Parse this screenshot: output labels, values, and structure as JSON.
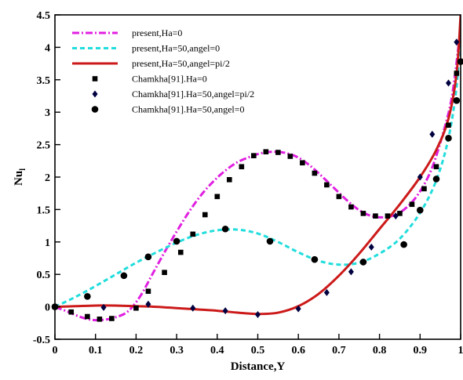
{
  "chart_data": {
    "type": "line",
    "title": "",
    "xlabel": "Distance,Y",
    "ylabel": "Nu",
    "ylabel_sub": "l",
    "xlim": [
      0,
      1
    ],
    "ylim": [
      -0.5,
      4.5
    ],
    "x_ticks": [
      0,
      0.1,
      0.2,
      0.3,
      0.4,
      0.5,
      0.6,
      0.7,
      0.8,
      0.9,
      1
    ],
    "x_tick_labels": [
      "0",
      "0.1",
      "0.2",
      "0.3",
      "0.4",
      "0.5",
      "0.6",
      "0.7",
      "0.8",
      "0.9",
      "1"
    ],
    "y_ticks": [
      -0.5,
      0,
      0.5,
      1,
      1.5,
      2,
      2.5,
      3,
      3.5,
      4,
      4.5
    ],
    "y_tick_labels": [
      "-0.5",
      "0",
      "0.5",
      "1",
      "1.5",
      "2",
      "2.5",
      "3",
      "3.5",
      "4",
      "4.5"
    ],
    "legend_position": "top-left",
    "grid": false,
    "series": [
      {
        "name": "present,Ha=0",
        "kind": "line",
        "color": "#e020e0",
        "style": "dashdot",
        "x": [
          0,
          0.03,
          0.06,
          0.09,
          0.12,
          0.15,
          0.18,
          0.21,
          0.24,
          0.27,
          0.3,
          0.33,
          0.36,
          0.39,
          0.42,
          0.45,
          0.48,
          0.51,
          0.54,
          0.57,
          0.6,
          0.63,
          0.66,
          0.69,
          0.72,
          0.75,
          0.78,
          0.81,
          0.84,
          0.87,
          0.9,
          0.93,
          0.96,
          0.98,
          1.0
        ],
        "y": [
          0,
          -0.07,
          -0.15,
          -0.2,
          -0.2,
          -0.16,
          -0.07,
          0.16,
          0.5,
          0.84,
          1.16,
          1.46,
          1.72,
          1.93,
          2.1,
          2.23,
          2.31,
          2.37,
          2.39,
          2.37,
          2.3,
          2.17,
          2.0,
          1.82,
          1.64,
          1.49,
          1.4,
          1.38,
          1.42,
          1.55,
          1.78,
          2.15,
          2.75,
          3.3,
          4.3
        ]
      },
      {
        "name": "present,Ha=50,angel=0",
        "kind": "line",
        "color": "#22dddd",
        "style": "dashed",
        "x": [
          0,
          0.05,
          0.1,
          0.15,
          0.2,
          0.25,
          0.3,
          0.35,
          0.4,
          0.45,
          0.5,
          0.55,
          0.6,
          0.65,
          0.7,
          0.75,
          0.8,
          0.85,
          0.9,
          0.94,
          0.97,
          0.99,
          1.0
        ],
        "y": [
          0,
          0.15,
          0.32,
          0.5,
          0.68,
          0.84,
          0.99,
          1.11,
          1.18,
          1.19,
          1.13,
          1.0,
          0.84,
          0.71,
          0.65,
          0.68,
          0.82,
          1.05,
          1.45,
          1.95,
          2.6,
          3.4,
          4.3
        ]
      },
      {
        "name": "present,Ha=50,angel=pi/2",
        "kind": "line",
        "color": "#cc1a1a",
        "style": "solid",
        "x": [
          0,
          0.05,
          0.1,
          0.15,
          0.2,
          0.25,
          0.3,
          0.35,
          0.4,
          0.45,
          0.5,
          0.55,
          0.6,
          0.65,
          0.7,
          0.75,
          0.8,
          0.85,
          0.9,
          0.94,
          0.97,
          0.99,
          1.0
        ],
        "y": [
          0,
          0.01,
          0.02,
          0.02,
          0.01,
          0.0,
          -0.02,
          -0.04,
          -0.06,
          -0.09,
          -0.11,
          -0.09,
          0.01,
          0.2,
          0.48,
          0.82,
          1.2,
          1.58,
          2.0,
          2.42,
          2.9,
          3.6,
          4.5
        ]
      },
      {
        "name": "Chamkha[91].Ha=0",
        "kind": "scatter",
        "marker": "square",
        "color": "#000000",
        "x": [
          0.0,
          0.04,
          0.08,
          0.11,
          0.14,
          0.2,
          0.23,
          0.27,
          0.31,
          0.34,
          0.37,
          0.4,
          0.43,
          0.46,
          0.49,
          0.52,
          0.55,
          0.58,
          0.61,
          0.64,
          0.67,
          0.7,
          0.73,
          0.76,
          0.79,
          0.82,
          0.85,
          0.88,
          0.91,
          0.94,
          0.97,
          0.99
        ],
        "y": [
          0.0,
          -0.08,
          -0.15,
          -0.19,
          -0.18,
          -0.02,
          0.24,
          0.53,
          0.84,
          1.12,
          1.42,
          1.7,
          1.96,
          2.16,
          2.33,
          2.39,
          2.38,
          2.32,
          2.22,
          2.06,
          1.88,
          1.7,
          1.54,
          1.44,
          1.4,
          1.4,
          1.44,
          1.58,
          1.82,
          2.16,
          2.8,
          3.6
        ]
      },
      {
        "name": "Chamkha[91].Ha=50,angel=pi/2",
        "kind": "scatter",
        "marker": "diamond",
        "color": "#000040",
        "x": [
          0.0,
          0.12,
          0.23,
          0.34,
          0.42,
          0.5,
          0.6,
          0.67,
          0.73,
          0.78,
          0.84,
          0.9,
          0.93,
          0.97,
          0.99
        ],
        "y": [
          0.0,
          -0.01,
          0.04,
          -0.02,
          -0.06,
          -0.12,
          -0.03,
          0.22,
          0.54,
          0.92,
          1.4,
          2.0,
          2.66,
          3.45,
          4.08
        ]
      },
      {
        "name": "Chamkha[91].Ha=50,angel=0",
        "kind": "scatter",
        "marker": "circle",
        "color": "#000000",
        "x": [
          0.0,
          0.08,
          0.17,
          0.23,
          0.3,
          0.42,
          0.53,
          0.64,
          0.76,
          0.86,
          0.9,
          0.94,
          0.97,
          0.99,
          1.0
        ],
        "y": [
          0.0,
          0.16,
          0.48,
          0.77,
          1.01,
          1.2,
          1.01,
          0.73,
          0.69,
          0.96,
          1.49,
          1.97,
          2.6,
          3.18,
          3.78
        ]
      }
    ]
  }
}
